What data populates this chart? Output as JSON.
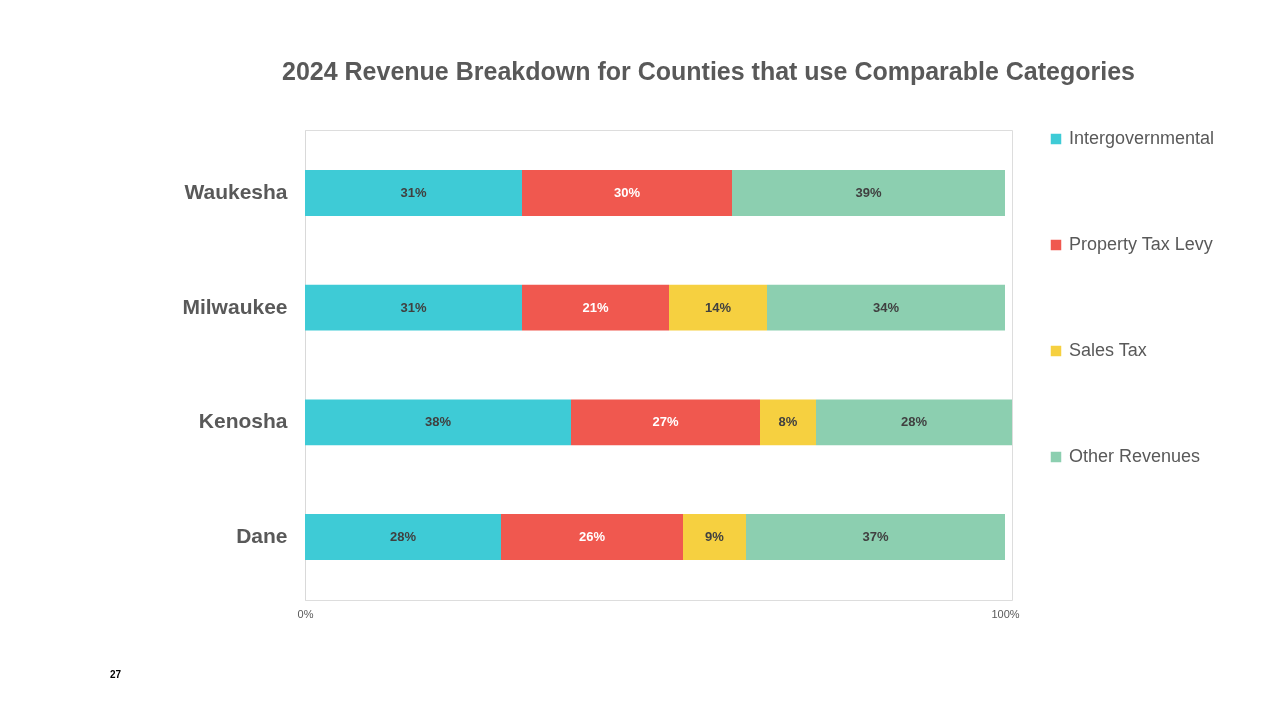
{
  "chart_data": {
    "type": "bar",
    "orientation": "horizontal",
    "stacked": true,
    "title": "2024 Revenue Breakdown for Counties that use Comparable Categories",
    "categories": [
      "Waukesha",
      "Milwaukee",
      "Kenosha",
      "Dane"
    ],
    "series": [
      {
        "name": "Intergovernmental",
        "color": "#3ecbd6",
        "values": [
          31,
          31,
          38,
          28
        ],
        "value_labels": [
          "31%",
          "31%",
          "38%",
          "28%"
        ]
      },
      {
        "name": "Property Tax Levy",
        "color": "#f0584f",
        "values": [
          30,
          21,
          27,
          26
        ],
        "value_labels": [
          "30%",
          "21%",
          "27%",
          "26%"
        ]
      },
      {
        "name": "Sales Tax",
        "color": "#f6d040",
        "values": [
          null,
          14,
          8,
          9
        ],
        "value_labels": [
          null,
          "14%",
          "8%",
          "9%"
        ]
      },
      {
        "name": "Other Revenues",
        "color": "#8ccfb0",
        "values": [
          39,
          34,
          28,
          37
        ],
        "value_labels": [
          "39%",
          "34%",
          "28%",
          "37%"
        ]
      }
    ],
    "xlim": [
      0,
      101
    ],
    "xticks": [
      {
        "value": 0,
        "label": "0%"
      },
      {
        "value": 100,
        "label": "100%"
      }
    ],
    "grid": false,
    "legend": "right",
    "annotations": [
      "27"
    ]
  }
}
